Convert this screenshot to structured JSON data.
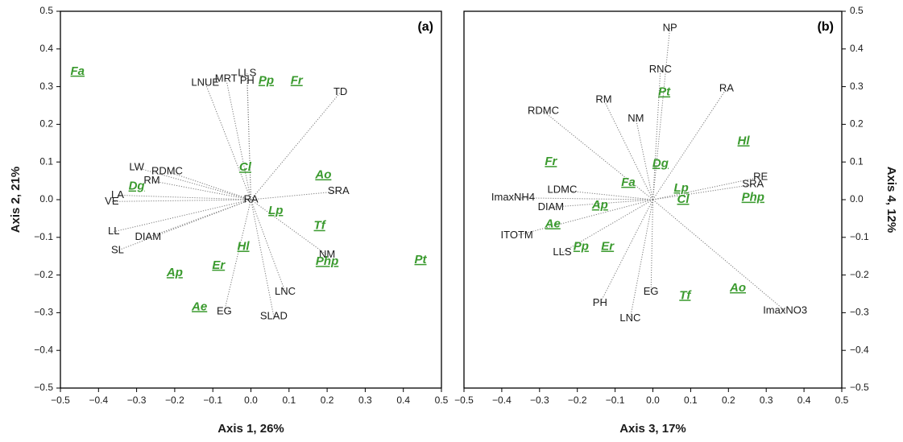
{
  "chart_data": [
    {
      "type": "scatter",
      "panel_label": "(a)",
      "xlabel": "Axis 1,  26%",
      "ylabel": "Axis 2,  21%",
      "xlim": [
        -0.5,
        0.5
      ],
      "ylim": [
        -0.5,
        0.5
      ],
      "xticks": [
        "−0.5",
        "−0.4",
        "−0.3",
        "−0.2",
        "−0.1",
        "0.0",
        "0.1",
        "0.2",
        "0.3",
        "0.4",
        "0.5"
      ],
      "yticks": [
        "0.5",
        "0.4",
        "0.3",
        "0.2",
        "0.1",
        "0.0",
        "−0.1",
        "−0.2",
        "−0.3",
        "−0.4",
        "−0.5"
      ],
      "yaxis_side": "left",
      "grid": false,
      "traits": [
        {
          "name": "LNUE",
          "x": -0.12,
          "y": 0.31
        },
        {
          "name": "MRT",
          "x": -0.065,
          "y": 0.32
        },
        {
          "name": "LLS",
          "x": -0.01,
          "y": 0.335
        },
        {
          "name": "PH",
          "x": -0.01,
          "y": 0.315
        },
        {
          "name": "TD",
          "x": 0.235,
          "y": 0.285
        },
        {
          "name": "LW",
          "x": -0.3,
          "y": 0.085
        },
        {
          "name": "RDMC",
          "x": -0.22,
          "y": 0.075
        },
        {
          "name": "RM",
          "x": -0.26,
          "y": 0.05
        },
        {
          "name": "LA",
          "x": -0.35,
          "y": 0.012
        },
        {
          "name": "VE",
          "x": -0.365,
          "y": -0.005
        },
        {
          "name": "RA",
          "x": 0.0,
          "y": 0.0
        },
        {
          "name": "SRA",
          "x": 0.23,
          "y": 0.022
        },
        {
          "name": "LL",
          "x": -0.36,
          "y": -0.085
        },
        {
          "name": "DIAM",
          "x": -0.27,
          "y": -0.1
        },
        {
          "name": "SL",
          "x": -0.35,
          "y": -0.135
        },
        {
          "name": "NM",
          "x": 0.2,
          "y": -0.147
        },
        {
          "name": "LNC",
          "x": 0.09,
          "y": -0.245
        },
        {
          "name": "EG",
          "x": -0.07,
          "y": -0.297
        },
        {
          "name": "SLAD",
          "x": 0.06,
          "y": -0.31
        }
      ],
      "species": [
        {
          "name": "Fa",
          "x": -0.455,
          "y": 0.34
        },
        {
          "name": "Pp",
          "x": 0.04,
          "y": 0.315
        },
        {
          "name": "Fr",
          "x": 0.12,
          "y": 0.315
        },
        {
          "name": "Cl",
          "x": -0.015,
          "y": 0.085
        },
        {
          "name": "Ao",
          "x": 0.19,
          "y": 0.065
        },
        {
          "name": "Dg",
          "x": -0.3,
          "y": 0.035
        },
        {
          "name": "Lp",
          "x": 0.065,
          "y": -0.03
        },
        {
          "name": "Tf",
          "x": 0.18,
          "y": -0.07
        },
        {
          "name": "Hl",
          "x": -0.02,
          "y": -0.125
        },
        {
          "name": "Php",
          "x": 0.2,
          "y": -0.165
        },
        {
          "name": "Pt",
          "x": 0.445,
          "y": -0.16
        },
        {
          "name": "Er",
          "x": -0.085,
          "y": -0.175
        },
        {
          "name": "Ap",
          "x": -0.2,
          "y": -0.195
        },
        {
          "name": "Ae",
          "x": -0.135,
          "y": -0.285
        }
      ]
    },
    {
      "type": "scatter",
      "panel_label": "(b)",
      "xlabel": "Axis 3,  17%",
      "ylabel": "Axis 4,  12%",
      "xlim": [
        -0.5,
        0.5
      ],
      "ylim": [
        -0.5,
        0.5
      ],
      "xticks": [
        "−0.5",
        "−0.4",
        "−0.3",
        "−0.2",
        "−0.1",
        "0.0",
        "0.1",
        "0.2",
        "0.3",
        "0.4",
        "0.5"
      ],
      "yticks": [
        "0.5",
        "0.4",
        "0.3",
        "0.2",
        "0.1",
        "0.0",
        "−0.1",
        "−0.2",
        "−0.3",
        "−0.4",
        "−0.5"
      ],
      "yaxis_side": "right",
      "grid": false,
      "traits": [
        {
          "name": "NP",
          "x": 0.045,
          "y": 0.455
        },
        {
          "name": "RNC",
          "x": 0.02,
          "y": 0.345
        },
        {
          "name": "RM",
          "x": -0.13,
          "y": 0.265
        },
        {
          "name": "RA",
          "x": 0.195,
          "y": 0.295
        },
        {
          "name": "NM",
          "x": -0.045,
          "y": 0.215
        },
        {
          "name": "RDMC",
          "x": -0.29,
          "y": 0.235
        },
        {
          "name": "RE",
          "x": 0.285,
          "y": 0.06
        },
        {
          "name": "SRA",
          "x": 0.265,
          "y": 0.04
        },
        {
          "name": "ImaxNH4",
          "x": -0.37,
          "y": 0.005
        },
        {
          "name": "LDMC",
          "x": -0.24,
          "y": 0.025
        },
        {
          "name": "DIAM",
          "x": -0.27,
          "y": -0.02
        },
        {
          "name": "ITOTM",
          "x": -0.36,
          "y": -0.095
        },
        {
          "name": "LLS",
          "x": -0.24,
          "y": -0.14
        },
        {
          "name": "PH",
          "x": -0.14,
          "y": -0.275
        },
        {
          "name": "EG",
          "x": -0.005,
          "y": -0.245
        },
        {
          "name": "LNC",
          "x": -0.06,
          "y": -0.315
        },
        {
          "name": "ImaxNO3",
          "x": 0.35,
          "y": -0.295
        }
      ],
      "species": [
        {
          "name": "Pt",
          "x": 0.03,
          "y": 0.285
        },
        {
          "name": "Hl",
          "x": 0.24,
          "y": 0.155
        },
        {
          "name": "Fr",
          "x": -0.27,
          "y": 0.1
        },
        {
          "name": "Dg",
          "x": 0.02,
          "y": 0.095
        },
        {
          "name": "Fa",
          "x": -0.065,
          "y": 0.045
        },
        {
          "name": "Lp",
          "x": 0.075,
          "y": 0.03
        },
        {
          "name": "Cl",
          "x": 0.08,
          "y": 0.0
        },
        {
          "name": "Php",
          "x": 0.265,
          "y": 0.005
        },
        {
          "name": "Ap",
          "x": -0.14,
          "y": -0.015
        },
        {
          "name": "Ae",
          "x": -0.265,
          "y": -0.065
        },
        {
          "name": "Pp",
          "x": -0.19,
          "y": -0.125
        },
        {
          "name": "Er",
          "x": -0.12,
          "y": -0.125
        },
        {
          "name": "Tf",
          "x": 0.085,
          "y": -0.255
        },
        {
          "name": "Ao",
          "x": 0.225,
          "y": -0.235
        }
      ]
    }
  ]
}
